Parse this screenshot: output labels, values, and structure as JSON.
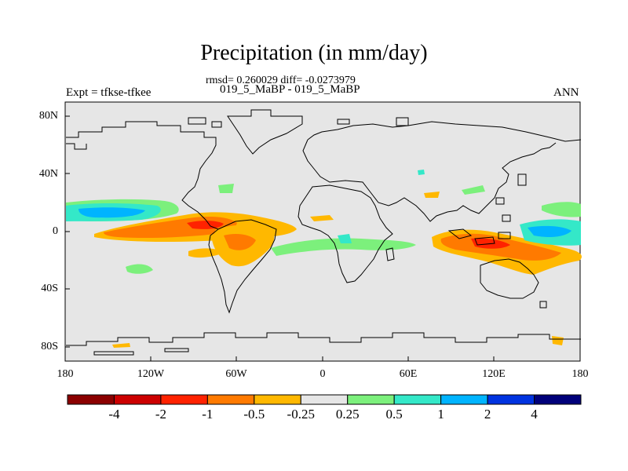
{
  "title": "Precipitation (in mm/day)",
  "stats": "rmsd= 0.260029 diff= -0.0273979",
  "experiment": "Expt = tfkse-tfkee",
  "cases": "019_5_MaBP - 019_5_MaBP",
  "season": "ANN",
  "map": {
    "lat_ticks": [
      "80N",
      "40N",
      "0",
      "40S",
      "80S"
    ],
    "lon_ticks": [
      "180",
      "120W",
      "60W",
      "0",
      "60E",
      "120E",
      "180"
    ],
    "background_color": "#e6e6e6"
  },
  "colorbar": {
    "labels": [
      "-4",
      "-2",
      "-1",
      "-0.5",
      "-0.25",
      "0.25",
      "0.5",
      "1",
      "2",
      "4"
    ],
    "colors": [
      "#8b0000",
      "#cc0000",
      "#ff2200",
      "#ff7a00",
      "#ffb800",
      "#e6e6e6",
      "#7cf07c",
      "#34e8c8",
      "#00b4ff",
      "#0033e0",
      "#00007a"
    ]
  }
}
